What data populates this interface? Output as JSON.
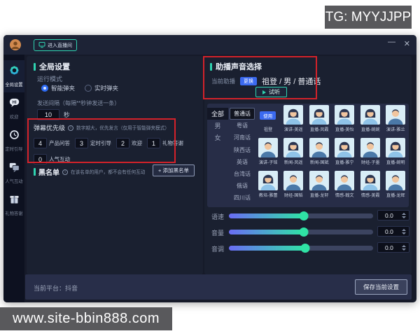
{
  "watermarks": {
    "tg": "TG: MYYJJPP",
    "site": "www.site-bbin888.com"
  },
  "titlebar": {
    "enter_room": "进入直播间",
    "minimize": "—",
    "close": "✕"
  },
  "sidebar": {
    "items": [
      {
        "label": "全局设置",
        "icon": "gear-icon",
        "active": true
      },
      {
        "label": "欢迎",
        "icon": "hi-bubble-icon",
        "active": false
      },
      {
        "label": "定时引导",
        "icon": "clock-icon",
        "active": false
      },
      {
        "label": "人气互动",
        "icon": "chat-icon",
        "active": false
      },
      {
        "label": "礼物答谢",
        "icon": "gift-icon",
        "active": false
      }
    ]
  },
  "global_settings": {
    "title": "全局设置",
    "run_mode_label": "运行模式",
    "run_modes": [
      {
        "label": "智能弹夹",
        "selected": true
      },
      {
        "label": "实时弹夹",
        "selected": false
      }
    ],
    "interval_label": "发送间隔",
    "interval_hint": "（每隔**秒钟发送一条）",
    "interval_value": "10",
    "interval_unit": "秒",
    "priority": {
      "title": "弹幕优先级",
      "note": "数字越大，优先发言（仅用于智能弹夹模式）",
      "items": [
        {
          "value": "4",
          "label": "产品问答"
        },
        {
          "value": "3",
          "label": "定时引导"
        },
        {
          "value": "2",
          "label": "欢迎"
        },
        {
          "value": "1",
          "label": "礼物答谢"
        },
        {
          "value": "0",
          "label": "人气互动"
        }
      ]
    },
    "blacklist": {
      "title": "黑名单",
      "note": "在该名单的用户，都不会有任何互动",
      "add_button": "+ 添加黑名单"
    }
  },
  "voice": {
    "title": "助播声音选择",
    "current_label": "当前助播",
    "current_badge": "更换",
    "current_value": "祖登 / 男 / 普通话",
    "preview_button": "试听",
    "selected_tag": "使用",
    "genders": [
      {
        "label": "全部",
        "active": true
      },
      {
        "label": "男",
        "active": false
      },
      {
        "label": "女",
        "active": false
      }
    ],
    "dialects": [
      {
        "label": "普通话",
        "active": true
      },
      {
        "label": "粤语",
        "active": false
      },
      {
        "label": "河南话",
        "active": false
      },
      {
        "label": "陕西话",
        "active": false
      },
      {
        "label": "英语",
        "active": false
      },
      {
        "label": "台湾话",
        "active": false
      },
      {
        "label": "俄语",
        "active": false
      },
      {
        "label": "四川话",
        "active": false
      }
    ],
    "voices": [
      [
        {
          "name": "祖登",
          "tag": true
        },
        {
          "name": "演讲-美遥",
          "g": "f"
        },
        {
          "name": "直播-凤霞",
          "g": "f"
        },
        {
          "name": "直播-美怡",
          "g": "f"
        },
        {
          "name": "直播-婉婉",
          "g": "f"
        },
        {
          "name": "演讲-雅兰",
          "g": "m"
        }
      ],
      [
        {
          "name": "演讲-子铭",
          "g": "m"
        },
        {
          "name": "新闻-凤遥",
          "g": "f"
        },
        {
          "name": "新闻-国斌",
          "g": "m"
        },
        {
          "name": "直播-雅宁",
          "g": "f"
        },
        {
          "name": "财经-子墨",
          "g": "m"
        },
        {
          "name": "直播-婉明",
          "g": "f"
        }
      ],
      [
        {
          "name": "教培-雅蕾",
          "g": "f"
        },
        {
          "name": "财经-国韬",
          "g": "m"
        },
        {
          "name": "直播-龙轩",
          "g": "m"
        },
        {
          "name": "情感-翰文",
          "g": "m"
        },
        {
          "name": "情感-美霞",
          "g": "f"
        },
        {
          "name": "直播-龙辉",
          "g": "m"
        }
      ]
    ],
    "sliders": [
      {
        "label": "语速",
        "value": "0.0",
        "percent": 52
      },
      {
        "label": "音量",
        "value": "0.0",
        "percent": 52
      },
      {
        "label": "音调",
        "value": "0.0",
        "percent": 53
      }
    ]
  },
  "footer": {
    "platform": "当前平台：抖音",
    "save_button": "保存当前设置"
  },
  "colors": {
    "accent_teal": "#2fd3b0",
    "accent_blue": "#2e6cf6",
    "annotation_red": "#d3222a",
    "slider_from": "#6a6cf5",
    "slider_to": "#2fe3a5"
  }
}
